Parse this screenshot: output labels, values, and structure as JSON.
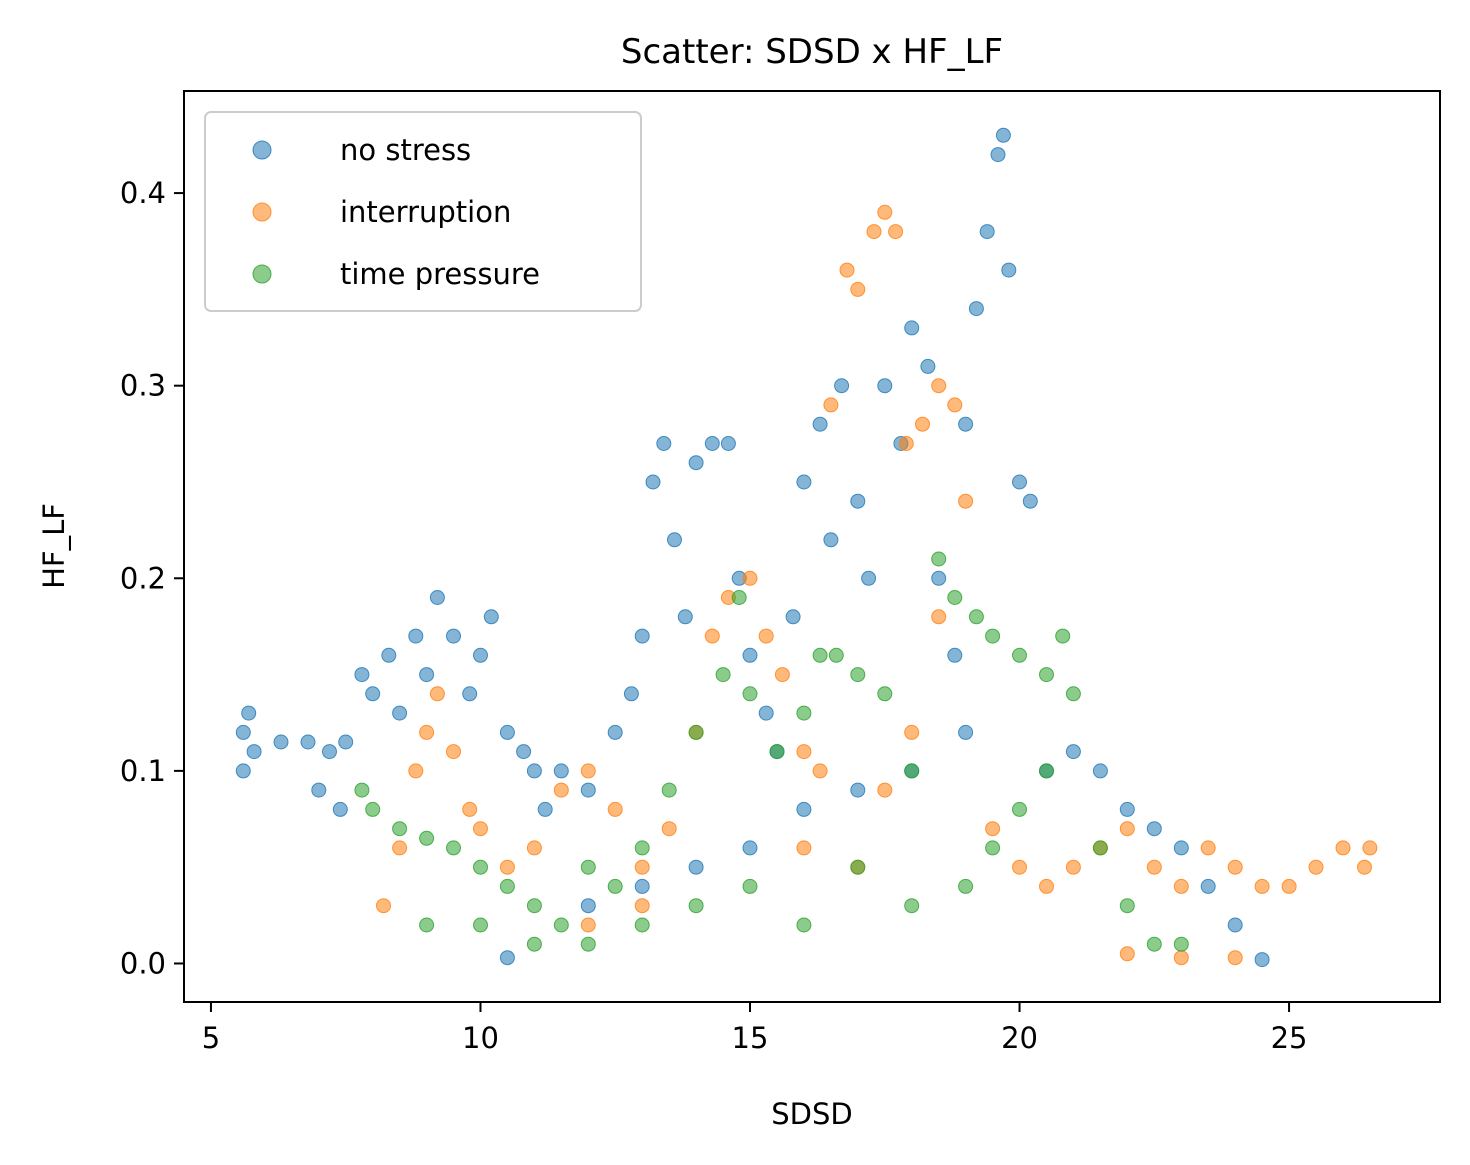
{
  "chart_data": {
    "type": "scatter",
    "title": "Scatter: SDSD x HF_LF",
    "xlabel": "SDSD",
    "ylabel": "HF_LF",
    "xlim": [
      4.5,
      27.8
    ],
    "ylim": [
      -0.02,
      0.453
    ],
    "xticks": [
      5,
      10,
      15,
      20,
      25
    ],
    "yticks": [
      0.0,
      0.1,
      0.2,
      0.3,
      0.4
    ],
    "xtick_labels": [
      "5",
      "10",
      "15",
      "20",
      "25"
    ],
    "ytick_labels": [
      "0.0",
      "0.1",
      "0.2",
      "0.3",
      "0.4"
    ],
    "grid": false,
    "legend_position": "top-left",
    "series": [
      {
        "name": "no stress",
        "color": "#1f77b4",
        "points": [
          [
            5.6,
            0.1
          ],
          [
            5.6,
            0.12
          ],
          [
            5.7,
            0.13
          ],
          [
            5.8,
            0.11
          ],
          [
            6.3,
            0.115
          ],
          [
            6.8,
            0.115
          ],
          [
            7.0,
            0.09
          ],
          [
            7.2,
            0.11
          ],
          [
            7.4,
            0.08
          ],
          [
            7.5,
            0.115
          ],
          [
            7.8,
            0.15
          ],
          [
            8.0,
            0.14
          ],
          [
            8.3,
            0.16
          ],
          [
            8.5,
            0.13
          ],
          [
            8.8,
            0.17
          ],
          [
            9.0,
            0.15
          ],
          [
            9.2,
            0.19
          ],
          [
            9.5,
            0.17
          ],
          [
            9.8,
            0.14
          ],
          [
            10.0,
            0.16
          ],
          [
            10.2,
            0.18
          ],
          [
            10.5,
            0.12
          ],
          [
            10.8,
            0.11
          ],
          [
            11.0,
            0.1
          ],
          [
            11.2,
            0.08
          ],
          [
            11.5,
            0.1
          ],
          [
            12.0,
            0.09
          ],
          [
            12.5,
            0.12
          ],
          [
            12.8,
            0.14
          ],
          [
            13.0,
            0.17
          ],
          [
            13.2,
            0.25
          ],
          [
            13.4,
            0.27
          ],
          [
            13.6,
            0.22
          ],
          [
            13.8,
            0.18
          ],
          [
            14.0,
            0.26
          ],
          [
            14.3,
            0.27
          ],
          [
            14.6,
            0.27
          ],
          [
            14.8,
            0.2
          ],
          [
            15.0,
            0.16
          ],
          [
            15.3,
            0.13
          ],
          [
            15.5,
            0.11
          ],
          [
            15.8,
            0.18
          ],
          [
            16.0,
            0.25
          ],
          [
            16.3,
            0.28
          ],
          [
            16.5,
            0.22
          ],
          [
            16.7,
            0.3
          ],
          [
            17.0,
            0.24
          ],
          [
            17.2,
            0.2
          ],
          [
            17.5,
            0.3
          ],
          [
            17.8,
            0.27
          ],
          [
            18.0,
            0.33
          ],
          [
            18.3,
            0.31
          ],
          [
            18.5,
            0.2
          ],
          [
            18.8,
            0.16
          ],
          [
            19.0,
            0.28
          ],
          [
            19.2,
            0.34
          ],
          [
            19.4,
            0.38
          ],
          [
            19.6,
            0.42
          ],
          [
            19.7,
            0.43
          ],
          [
            19.8,
            0.36
          ],
          [
            20.0,
            0.25
          ],
          [
            20.2,
            0.24
          ],
          [
            20.5,
            0.1
          ],
          [
            21.0,
            0.11
          ],
          [
            21.5,
            0.1
          ],
          [
            22.0,
            0.08
          ],
          [
            22.5,
            0.07
          ],
          [
            23.0,
            0.06
          ],
          [
            23.5,
            0.04
          ],
          [
            24.0,
            0.02
          ],
          [
            24.5,
            0.002
          ],
          [
            12.0,
            0.03
          ],
          [
            13.0,
            0.04
          ],
          [
            14.0,
            0.05
          ],
          [
            15.0,
            0.06
          ],
          [
            16.0,
            0.08
          ],
          [
            17.0,
            0.09
          ],
          [
            18.0,
            0.1
          ],
          [
            19.0,
            0.12
          ],
          [
            10.5,
            0.003
          ]
        ]
      },
      {
        "name": "interruption",
        "color": "#ff7f0e",
        "points": [
          [
            8.2,
            0.03
          ],
          [
            8.5,
            0.06
          ],
          [
            8.8,
            0.1
          ],
          [
            9.0,
            0.12
          ],
          [
            9.2,
            0.14
          ],
          [
            9.5,
            0.11
          ],
          [
            9.8,
            0.08
          ],
          [
            10.0,
            0.07
          ],
          [
            10.5,
            0.05
          ],
          [
            11.0,
            0.06
          ],
          [
            11.5,
            0.09
          ],
          [
            12.0,
            0.1
          ],
          [
            12.5,
            0.08
          ],
          [
            13.0,
            0.05
          ],
          [
            13.5,
            0.07
          ],
          [
            14.0,
            0.12
          ],
          [
            14.3,
            0.17
          ],
          [
            14.6,
            0.19
          ],
          [
            15.0,
            0.2
          ],
          [
            15.3,
            0.17
          ],
          [
            15.6,
            0.15
          ],
          [
            16.0,
            0.11
          ],
          [
            16.3,
            0.1
          ],
          [
            16.5,
            0.29
          ],
          [
            16.8,
            0.36
          ],
          [
            17.0,
            0.35
          ],
          [
            17.3,
            0.38
          ],
          [
            17.5,
            0.39
          ],
          [
            17.7,
            0.38
          ],
          [
            17.9,
            0.27
          ],
          [
            18.2,
            0.28
          ],
          [
            18.5,
            0.3
          ],
          [
            18.8,
            0.29
          ],
          [
            19.0,
            0.24
          ],
          [
            18.5,
            0.18
          ],
          [
            18.0,
            0.12
          ],
          [
            17.5,
            0.09
          ],
          [
            19.5,
            0.07
          ],
          [
            20.0,
            0.05
          ],
          [
            20.5,
            0.04
          ],
          [
            21.0,
            0.05
          ],
          [
            21.5,
            0.06
          ],
          [
            22.0,
            0.07
          ],
          [
            22.5,
            0.05
          ],
          [
            23.0,
            0.04
          ],
          [
            23.5,
            0.06
          ],
          [
            24.0,
            0.05
          ],
          [
            24.5,
            0.04
          ],
          [
            25.0,
            0.04
          ],
          [
            25.5,
            0.05
          ],
          [
            26.0,
            0.06
          ],
          [
            26.4,
            0.05
          ],
          [
            26.5,
            0.06
          ],
          [
            22.0,
            0.005
          ],
          [
            23.0,
            0.003
          ],
          [
            24.0,
            0.003
          ],
          [
            12.0,
            0.02
          ],
          [
            13.0,
            0.03
          ],
          [
            16.0,
            0.06
          ],
          [
            17.0,
            0.05
          ]
        ]
      },
      {
        "name": "time pressure",
        "color": "#2ca02c",
        "points": [
          [
            7.8,
            0.09
          ],
          [
            8.0,
            0.08
          ],
          [
            8.5,
            0.07
          ],
          [
            9.0,
            0.065
          ],
          [
            9.5,
            0.06
          ],
          [
            10.0,
            0.05
          ],
          [
            10.5,
            0.04
          ],
          [
            11.0,
            0.03
          ],
          [
            11.5,
            0.02
          ],
          [
            12.0,
            0.01
          ],
          [
            12.5,
            0.04
          ],
          [
            13.0,
            0.06
          ],
          [
            13.5,
            0.09
          ],
          [
            14.0,
            0.12
          ],
          [
            14.5,
            0.15
          ],
          [
            14.8,
            0.19
          ],
          [
            15.0,
            0.14
          ],
          [
            15.5,
            0.11
          ],
          [
            16.0,
            0.13
          ],
          [
            16.3,
            0.16
          ],
          [
            16.6,
            0.16
          ],
          [
            17.0,
            0.15
          ],
          [
            17.5,
            0.14
          ],
          [
            18.0,
            0.1
          ],
          [
            18.5,
            0.21
          ],
          [
            18.8,
            0.19
          ],
          [
            19.2,
            0.18
          ],
          [
            19.5,
            0.17
          ],
          [
            20.0,
            0.16
          ],
          [
            20.5,
            0.15
          ],
          [
            20.8,
            0.17
          ],
          [
            21.0,
            0.14
          ],
          [
            20.5,
            0.1
          ],
          [
            20.0,
            0.08
          ],
          [
            19.5,
            0.06
          ],
          [
            19.0,
            0.04
          ],
          [
            18.0,
            0.03
          ],
          [
            17.0,
            0.05
          ],
          [
            16.0,
            0.02
          ],
          [
            15.0,
            0.04
          ],
          [
            14.0,
            0.03
          ],
          [
            13.0,
            0.02
          ],
          [
            12.0,
            0.05
          ],
          [
            11.0,
            0.01
          ],
          [
            21.5,
            0.06
          ],
          [
            22.0,
            0.03
          ],
          [
            22.5,
            0.01
          ],
          [
            23.0,
            0.01
          ],
          [
            9.0,
            0.02
          ],
          [
            10.0,
            0.02
          ]
        ]
      }
    ]
  }
}
